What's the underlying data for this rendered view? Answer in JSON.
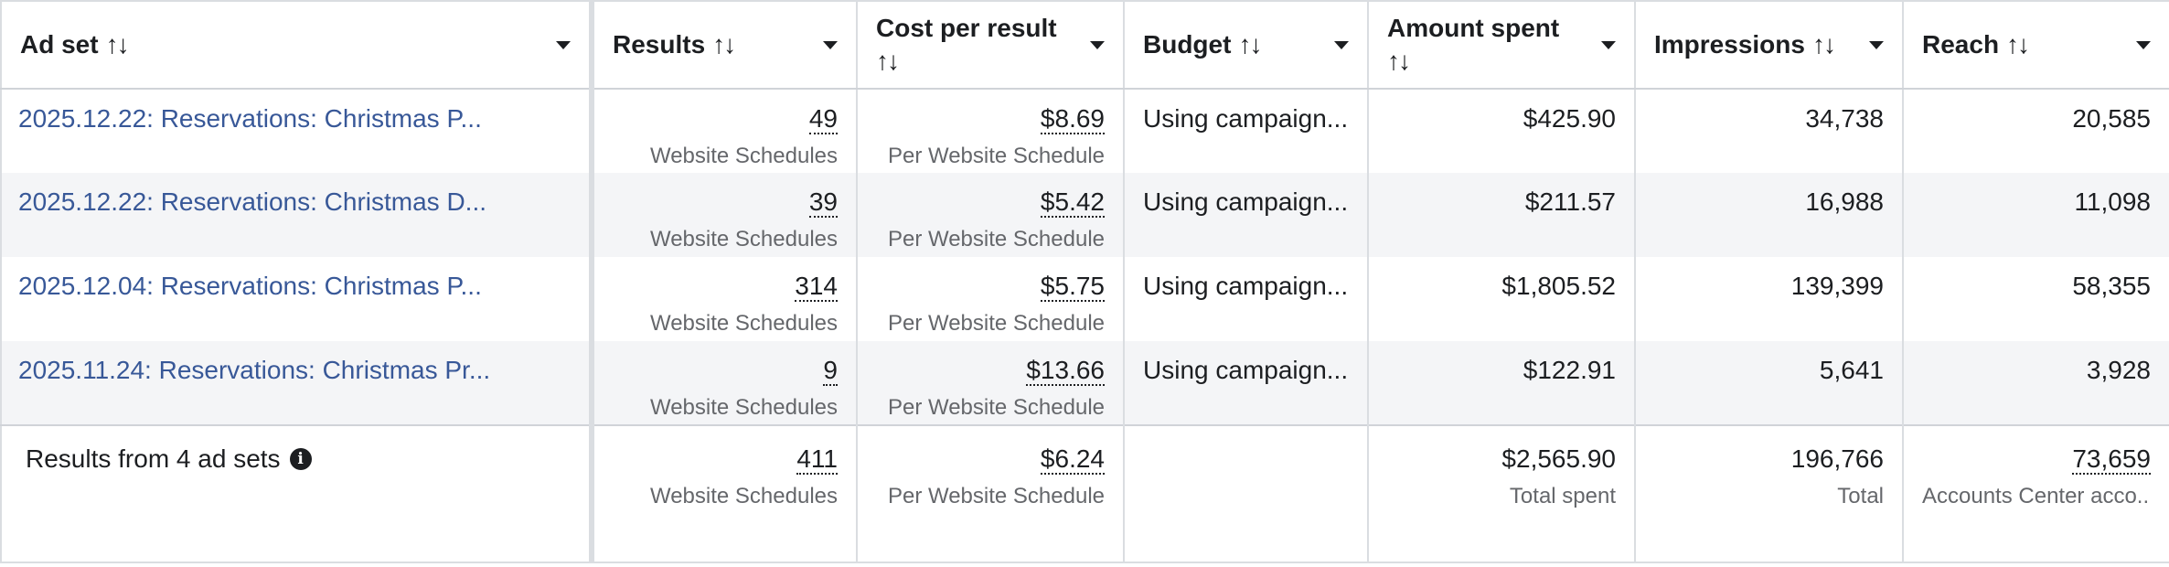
{
  "headers": {
    "adset": "Ad set",
    "results": "Results",
    "cost_per_result": "Cost per result",
    "budget": "Budget",
    "amount_spent": "Amount spent",
    "impressions": "Impressions",
    "reach": "Reach",
    "sort_glyph": "↑↓"
  },
  "rows": [
    {
      "name": "2025.12.22: Reservations: Christmas P...",
      "results": "49",
      "results_sub": "Website Schedules",
      "cpr": "$8.69",
      "cpr_sub": "Per Website Schedule",
      "budget": "Using campaign...",
      "spent": "$425.90",
      "impressions": "34,738",
      "reach": "20,585"
    },
    {
      "name": "2025.12.22: Reservations: Christmas D...",
      "results": "39",
      "results_sub": "Website Schedules",
      "cpr": "$5.42",
      "cpr_sub": "Per Website Schedule",
      "budget": "Using campaign...",
      "spent": "$211.57",
      "impressions": "16,988",
      "reach": "11,098"
    },
    {
      "name": "2025.12.04: Reservations: Christmas P...",
      "results": "314",
      "results_sub": "Website Schedules",
      "cpr": "$5.75",
      "cpr_sub": "Per Website Schedule",
      "budget": "Using campaign...",
      "spent": "$1,805.52",
      "impressions": "139,399",
      "reach": "58,355"
    },
    {
      "name": "2025.11.24: Reservations: Christmas Pr...",
      "results": "9",
      "results_sub": "Website Schedules",
      "cpr": "$13.66",
      "cpr_sub": "Per Website Schedule",
      "budget": "Using campaign...",
      "spent": "$122.91",
      "impressions": "5,641",
      "reach": "3,928"
    }
  ],
  "totals": {
    "label": "Results from 4 ad sets",
    "info_icon": "info-icon",
    "results": "411",
    "results_sub": "Website Schedules",
    "cpr": "$6.24",
    "cpr_sub": "Per Website Schedule",
    "budget": "",
    "spent": "$2,565.90",
    "spent_sub": "Total spent",
    "impressions": "196,766",
    "impressions_sub": "Total",
    "reach": "73,659",
    "reach_sub": "Accounts Center acco..."
  },
  "colors": {
    "link": "#385898",
    "alt_row": "#f4f5f7",
    "border": "#dadde1",
    "muted": "#65676b"
  }
}
